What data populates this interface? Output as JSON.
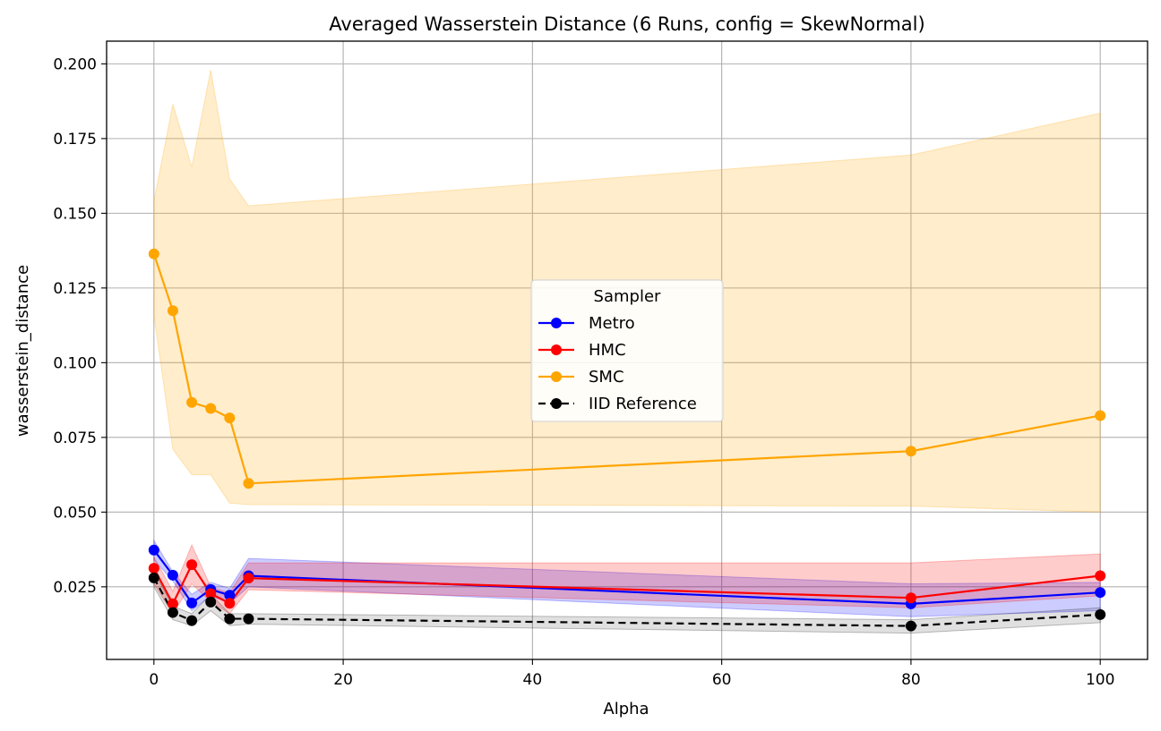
{
  "chart_data": {
    "type": "line",
    "title": "Averaged Wasserstein Distance (6 Runs, config = SkewNormal)",
    "xlabel": "Alpha",
    "ylabel": "wasserstein_distance",
    "xlim": [
      -5,
      105
    ],
    "ylim": [
      0.0007,
      0.2076
    ],
    "xticks": [
      0,
      20,
      40,
      60,
      80,
      100
    ],
    "xtick_labels": [
      "0",
      "20",
      "40",
      "60",
      "80",
      "100"
    ],
    "yticks": [
      0.025,
      0.05,
      0.075,
      0.1,
      0.125,
      0.15,
      0.175,
      0.2
    ],
    "ytick_labels": [
      "0.025",
      "0.050",
      "0.075",
      "0.100",
      "0.125",
      "0.150",
      "0.175",
      "0.200"
    ],
    "grid": true,
    "legend": {
      "title": "Sampler",
      "placement": "center"
    },
    "x": [
      0,
      2,
      4,
      6,
      8,
      10,
      80,
      100
    ],
    "series": [
      {
        "name": "Metro",
        "color": "#0000ff",
        "linestyle": "solid",
        "values": [
          0.0373,
          0.0289,
          0.0196,
          0.0241,
          0.0222,
          0.0287,
          0.0193,
          0.0231
        ],
        "lower": [
          0.034,
          0.027,
          0.017,
          0.022,
          0.0195,
          0.025,
          0.015,
          0.017
        ],
        "upper": [
          0.0405,
          0.03,
          0.0225,
          0.0265,
          0.0245,
          0.0345,
          0.026,
          0.0265
        ]
      },
      {
        "name": "HMC",
        "color": "#ff0000",
        "linestyle": "solid",
        "values": [
          0.0312,
          0.0193,
          0.0324,
          0.0227,
          0.0195,
          0.0279,
          0.0213,
          0.0287
        ],
        "lower": [
          0.026,
          0.016,
          0.026,
          0.02,
          0.016,
          0.024,
          0.018,
          0.022
        ],
        "upper": [
          0.035,
          0.0235,
          0.039,
          0.025,
          0.023,
          0.033,
          0.033,
          0.036
        ]
      },
      {
        "name": "SMC",
        "color": "#ffa500",
        "linestyle": "solid",
        "values": [
          0.1364,
          0.1174,
          0.0867,
          0.0847,
          0.0815,
          0.0596,
          0.0704,
          0.0823
        ],
        "lower": [
          0.116,
          0.071,
          0.0625,
          0.0625,
          0.053,
          0.0525,
          0.052,
          0.05
        ],
        "upper": [
          0.154,
          0.1865,
          0.1655,
          0.198,
          0.1615,
          0.1525,
          0.1695,
          0.1835
        ]
      },
      {
        "name": "IID Reference",
        "color": "#000000",
        "linestyle": "dashed",
        "values": [
          0.028,
          0.0164,
          0.0137,
          0.0199,
          0.0143,
          0.0143,
          0.0119,
          0.0157
        ],
        "lower": [
          0.025,
          0.014,
          0.012,
          0.017,
          0.012,
          0.0125,
          0.0095,
          0.013
        ],
        "upper": [
          0.03,
          0.0185,
          0.016,
          0.0225,
          0.016,
          0.016,
          0.014,
          0.018
        ]
      }
    ]
  }
}
